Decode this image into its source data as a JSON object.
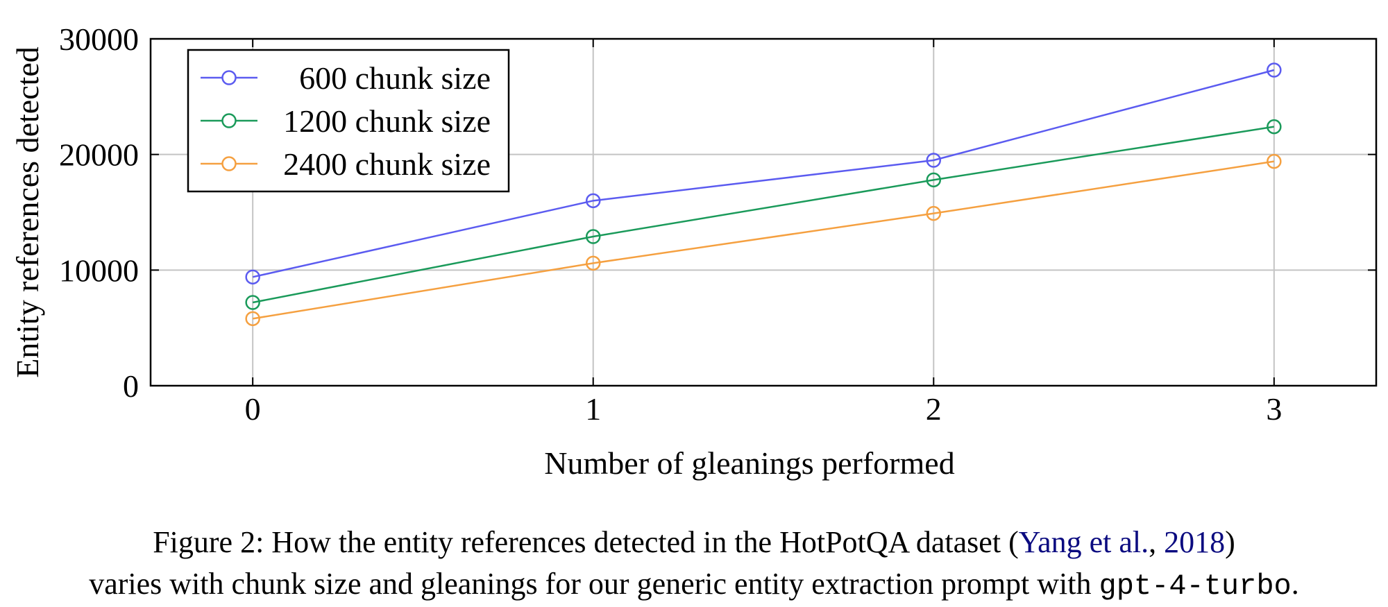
{
  "chart_data": {
    "type": "line",
    "title": "",
    "xlabel": "Number of gleanings performed",
    "ylabel": "Entity references detected",
    "x": [
      0,
      1,
      2,
      3
    ],
    "xlim": [
      -0.3,
      3.3
    ],
    "ylim": [
      0,
      30000
    ],
    "xticks": [
      "0",
      "1",
      "2",
      "3"
    ],
    "yticks": [
      "0",
      "10000",
      "20000",
      "30000"
    ],
    "grid": true,
    "legend_position": "top-left",
    "series": [
      {
        "name": "600 chunk size",
        "color": "#5b5bf0",
        "values": [
          9400,
          16000,
          19500,
          27300
        ]
      },
      {
        "name": "1200 chunk size",
        "color": "#1a9a5a",
        "values": [
          7200,
          12900,
          17800,
          22400
        ]
      },
      {
        "name": "2400 chunk size",
        "color": "#f5a040",
        "values": [
          5800,
          10600,
          14900,
          19400
        ]
      }
    ]
  },
  "caption": {
    "line1_before": "Figure 2: How the entity references detected in the HotPotQA dataset (",
    "cite_author": "Yang et al.",
    "cite_sep": ", ",
    "cite_year": "2018",
    "line1_after": ")",
    "line2_text": "varies with chunk size and gleanings for our generic entity extraction prompt with ",
    "line2_code": "gpt-4-turbo",
    "line2_end": "."
  }
}
